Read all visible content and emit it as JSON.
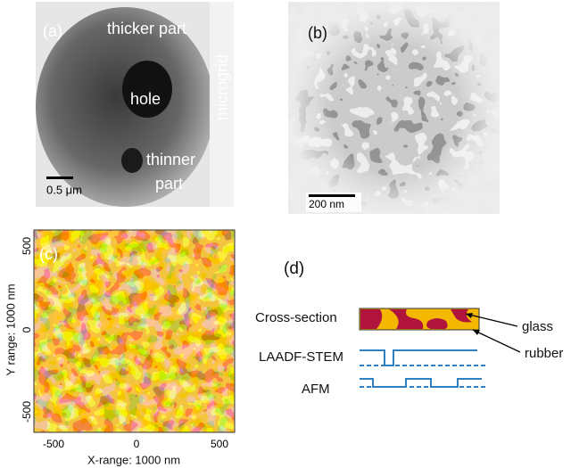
{
  "panels": {
    "a": {
      "label": "(a)",
      "thicker": "thicker part",
      "hole": "hole",
      "microgrid": "microgrid",
      "thinner": "thinner",
      "part": "part",
      "scale": "0.5 μm"
    },
    "b": {
      "label": "(b)",
      "scale": "200 nm"
    },
    "c": {
      "label": "(c)",
      "y_axis_label": "Y range: 1000 nm",
      "x_axis_label": "X-range: 1000 nm",
      "yticks": [
        "500",
        "0",
        "-500"
      ],
      "xticks": [
        "-500",
        "0",
        "500"
      ]
    },
    "d": {
      "label": "(d)",
      "rows": [
        "Cross-section",
        "LAADF-STEM",
        "AFM"
      ],
      "glass": "glass",
      "rubber": "rubber"
    }
  }
}
